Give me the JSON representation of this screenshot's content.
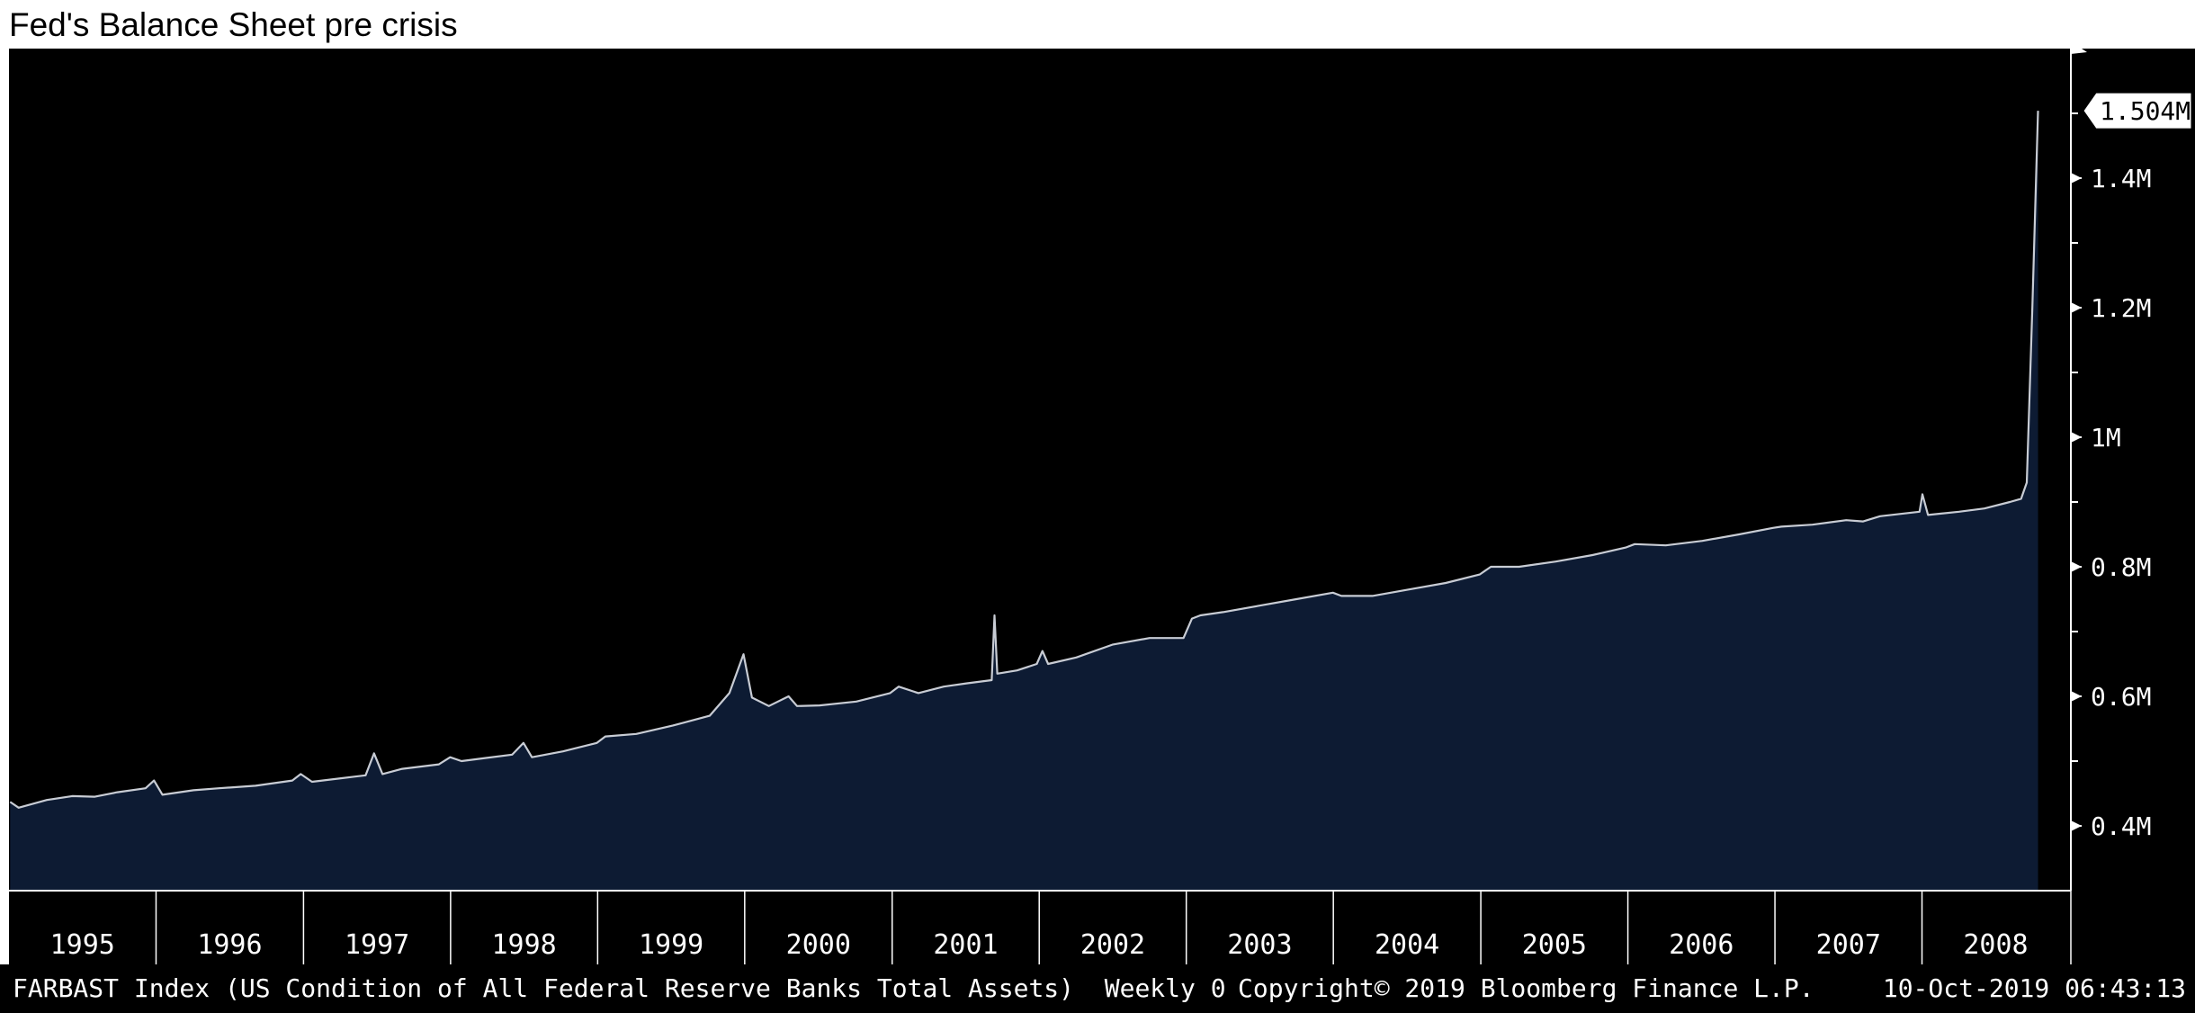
{
  "chart_data": {
    "type": "area",
    "title": "Fed's Balance Sheet pre crisis",
    "series": [
      {
        "ticker": "FARBAST Index",
        "description": "(US Condition of All Federal Reserve Banks Total Assets)",
        "frequency": "Weekly 0",
        "color": "#c8ccd4",
        "fill": "#0d1b33",
        "points": [
          [
            "1995-01-04",
            0.437
          ],
          [
            "1995-01-25",
            0.428
          ],
          [
            "1995-04-05",
            0.44
          ],
          [
            "1995-06-07",
            0.446
          ],
          [
            "1995-08-02",
            0.445
          ],
          [
            "1995-09-27",
            0.452
          ],
          [
            "1995-12-06",
            0.458
          ],
          [
            "1995-12-27",
            0.47
          ],
          [
            "1996-01-17",
            0.448
          ],
          [
            "1996-04-03",
            0.455
          ],
          [
            "1996-06-05",
            0.458
          ],
          [
            "1996-09-04",
            0.462
          ],
          [
            "1996-12-04",
            0.47
          ],
          [
            "1996-12-25",
            0.48
          ],
          [
            "1997-01-22",
            0.468
          ],
          [
            "1997-05-07",
            0.476
          ],
          [
            "1997-06-04",
            0.478
          ],
          [
            "1997-06-25",
            0.512
          ],
          [
            "1997-07-16",
            0.48
          ],
          [
            "1997-09-03",
            0.488
          ],
          [
            "1997-12-03",
            0.495
          ],
          [
            "1997-12-31",
            0.506
          ],
          [
            "1998-01-28",
            0.5
          ],
          [
            "1998-04-01",
            0.505
          ],
          [
            "1998-06-03",
            0.51
          ],
          [
            "1998-07-01",
            0.528
          ],
          [
            "1998-07-22",
            0.506
          ],
          [
            "1998-10-07",
            0.515
          ],
          [
            "1998-12-30",
            0.528
          ],
          [
            "1999-01-20",
            0.538
          ],
          [
            "1999-04-07",
            0.542
          ],
          [
            "1999-07-07",
            0.555
          ],
          [
            "1999-10-06",
            0.57
          ],
          [
            "1999-11-24",
            0.605
          ],
          [
            "1999-12-29",
            0.665
          ],
          [
            "2000-01-19",
            0.598
          ],
          [
            "2000-03-01",
            0.585
          ],
          [
            "2000-04-19",
            0.6
          ],
          [
            "2000-05-10",
            0.585
          ],
          [
            "2000-07-05",
            0.586
          ],
          [
            "2000-10-04",
            0.592
          ],
          [
            "2000-12-27",
            0.605
          ],
          [
            "2001-01-17",
            0.615
          ],
          [
            "2001-03-07",
            0.605
          ],
          [
            "2001-05-09",
            0.615
          ],
          [
            "2001-07-04",
            0.62
          ],
          [
            "2001-09-05",
            0.625
          ],
          [
            "2001-09-12",
            0.725
          ],
          [
            "2001-09-19",
            0.635
          ],
          [
            "2001-11-07",
            0.64
          ],
          [
            "2001-12-26",
            0.65
          ],
          [
            "2002-01-09",
            0.67
          ],
          [
            "2002-01-23",
            0.65
          ],
          [
            "2002-04-03",
            0.66
          ],
          [
            "2002-07-03",
            0.68
          ],
          [
            "2002-10-02",
            0.69
          ],
          [
            "2002-12-25",
            0.69
          ],
          [
            "2003-01-15",
            0.72
          ],
          [
            "2003-02-05",
            0.725
          ],
          [
            "2003-04-02",
            0.73
          ],
          [
            "2003-07-02",
            0.74
          ],
          [
            "2003-10-01",
            0.75
          ],
          [
            "2003-12-31",
            0.76
          ],
          [
            "2004-01-21",
            0.755
          ],
          [
            "2004-04-07",
            0.755
          ],
          [
            "2004-07-07",
            0.765
          ],
          [
            "2004-10-06",
            0.775
          ],
          [
            "2004-12-29",
            0.788
          ],
          [
            "2005-01-26",
            0.8
          ],
          [
            "2005-04-06",
            0.8
          ],
          [
            "2005-07-06",
            0.808
          ],
          [
            "2005-10-05",
            0.818
          ],
          [
            "2005-12-28",
            0.83
          ],
          [
            "2006-01-18",
            0.835
          ],
          [
            "2006-04-05",
            0.833
          ],
          [
            "2006-07-05",
            0.84
          ],
          [
            "2006-10-04",
            0.85
          ],
          [
            "2006-12-27",
            0.86
          ],
          [
            "2007-01-17",
            0.862
          ],
          [
            "2007-04-04",
            0.865
          ],
          [
            "2007-06-27",
            0.872
          ],
          [
            "2007-08-08",
            0.87
          ],
          [
            "2007-09-19",
            0.878
          ],
          [
            "2007-12-26",
            0.885
          ],
          [
            "2008-01-02",
            0.912
          ],
          [
            "2008-01-16",
            0.88
          ],
          [
            "2008-04-02",
            0.885
          ],
          [
            "2008-06-04",
            0.89
          ],
          [
            "2008-08-06",
            0.9
          ],
          [
            "2008-09-03",
            0.905
          ],
          [
            "2008-09-17",
            0.93
          ],
          [
            "2008-10-01",
            1.2
          ],
          [
            "2008-10-15",
            1.504
          ]
        ]
      }
    ],
    "x_ticks": [
      "1995",
      "1996",
      "1997",
      "1998",
      "1999",
      "2000",
      "2001",
      "2002",
      "2003",
      "2004",
      "2005",
      "2006",
      "2007",
      "2008"
    ],
    "y_ticks": [
      "0.4M",
      "0.6M",
      "0.8M",
      "1M",
      "1.2M",
      "1.4M"
    ],
    "y_tick_values": [
      0.4,
      0.6,
      0.8,
      1.0,
      1.2,
      1.4
    ],
    "ylim": [
      0.3,
      1.6
    ],
    "xlim": [
      "1995-01-01",
      "2008-12-31"
    ],
    "last_value_label": "1.504M",
    "last_value": 1.504,
    "grid": false,
    "background": "#000000"
  },
  "footer": {
    "series_label": "FARBAST Index (US Condition of All Federal Reserve Banks Total Assets)  Weekly 0",
    "copyright": "Copyright© 2019 Bloomberg Finance L.P.",
    "timestamp": "10-Oct-2019 06:43:13"
  }
}
